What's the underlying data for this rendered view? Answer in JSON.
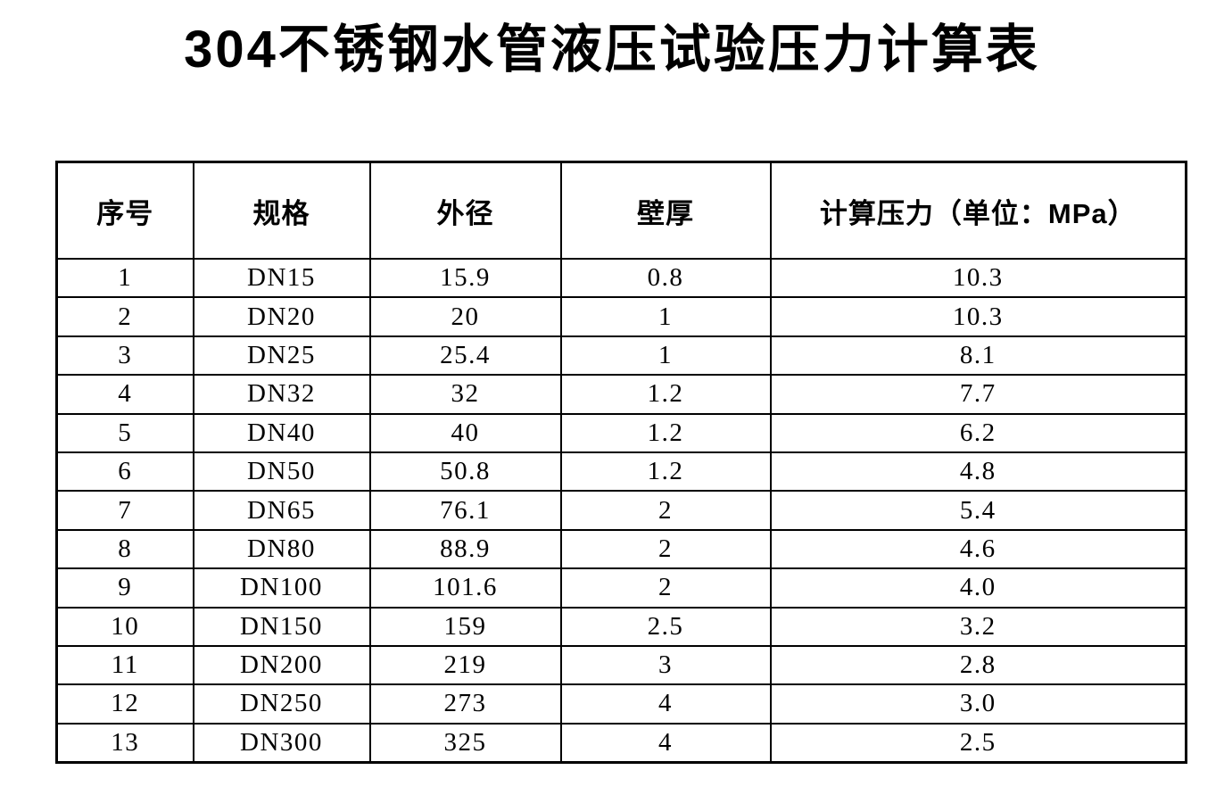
{
  "page": {
    "title": "304不锈钢水管液压试验压力计算表"
  },
  "table": {
    "columns": [
      "序号",
      "规格",
      "外径",
      "壁厚",
      "计算压力（单位：MPa）"
    ],
    "rows": [
      [
        "1",
        "DN15",
        "15.9",
        "0.8",
        "10.3"
      ],
      [
        "2",
        "DN20",
        "20",
        "1",
        "10.3"
      ],
      [
        "3",
        "DN25",
        "25.4",
        "1",
        "8.1"
      ],
      [
        "4",
        "DN32",
        "32",
        "1.2",
        "7.7"
      ],
      [
        "5",
        "DN40",
        "40",
        "1.2",
        "6.2"
      ],
      [
        "6",
        "DN50",
        "50.8",
        "1.2",
        "4.8"
      ],
      [
        "7",
        "DN65",
        "76.1",
        "2",
        "5.4"
      ],
      [
        "8",
        "DN80",
        "88.9",
        "2",
        "4.6"
      ],
      [
        "9",
        "DN100",
        "101.6",
        "2",
        "4.0"
      ],
      [
        "10",
        "DN150",
        "159",
        "2.5",
        "3.2"
      ],
      [
        "11",
        "DN200",
        "219",
        "3",
        "2.8"
      ],
      [
        "12",
        "DN250",
        "273",
        "4",
        "3.0"
      ],
      [
        "13",
        "DN300",
        "325",
        "4",
        "2.5"
      ]
    ]
  },
  "chart_data": {
    "type": "table",
    "title": "304不锈钢水管液压试验压力计算表",
    "columns": [
      "序号",
      "规格",
      "外径",
      "壁厚",
      "计算压力（单位：MPa）"
    ],
    "rows": [
      [
        "1",
        "DN15",
        "15.9",
        "0.8",
        "10.3"
      ],
      [
        "2",
        "DN20",
        "20",
        "1",
        "10.3"
      ],
      [
        "3",
        "DN25",
        "25.4",
        "1",
        "8.1"
      ],
      [
        "4",
        "DN32",
        "32",
        "1.2",
        "7.7"
      ],
      [
        "5",
        "DN40",
        "40",
        "1.2",
        "6.2"
      ],
      [
        "6",
        "DN50",
        "50.8",
        "1.2",
        "4.8"
      ],
      [
        "7",
        "DN65",
        "76.1",
        "2",
        "5.4"
      ],
      [
        "8",
        "DN80",
        "88.9",
        "2",
        "4.6"
      ],
      [
        "9",
        "DN100",
        "101.6",
        "2",
        "4.0"
      ],
      [
        "10",
        "DN150",
        "159",
        "2.5",
        "3.2"
      ],
      [
        "11",
        "DN200",
        "219",
        "3",
        "2.8"
      ],
      [
        "12",
        "DN250",
        "273",
        "4",
        "3.0"
      ],
      [
        "13",
        "DN300",
        "325",
        "4",
        "2.5"
      ]
    ]
  },
  "colors": {
    "background": "#ffffff",
    "text": "#000000",
    "border": "#000000"
  }
}
